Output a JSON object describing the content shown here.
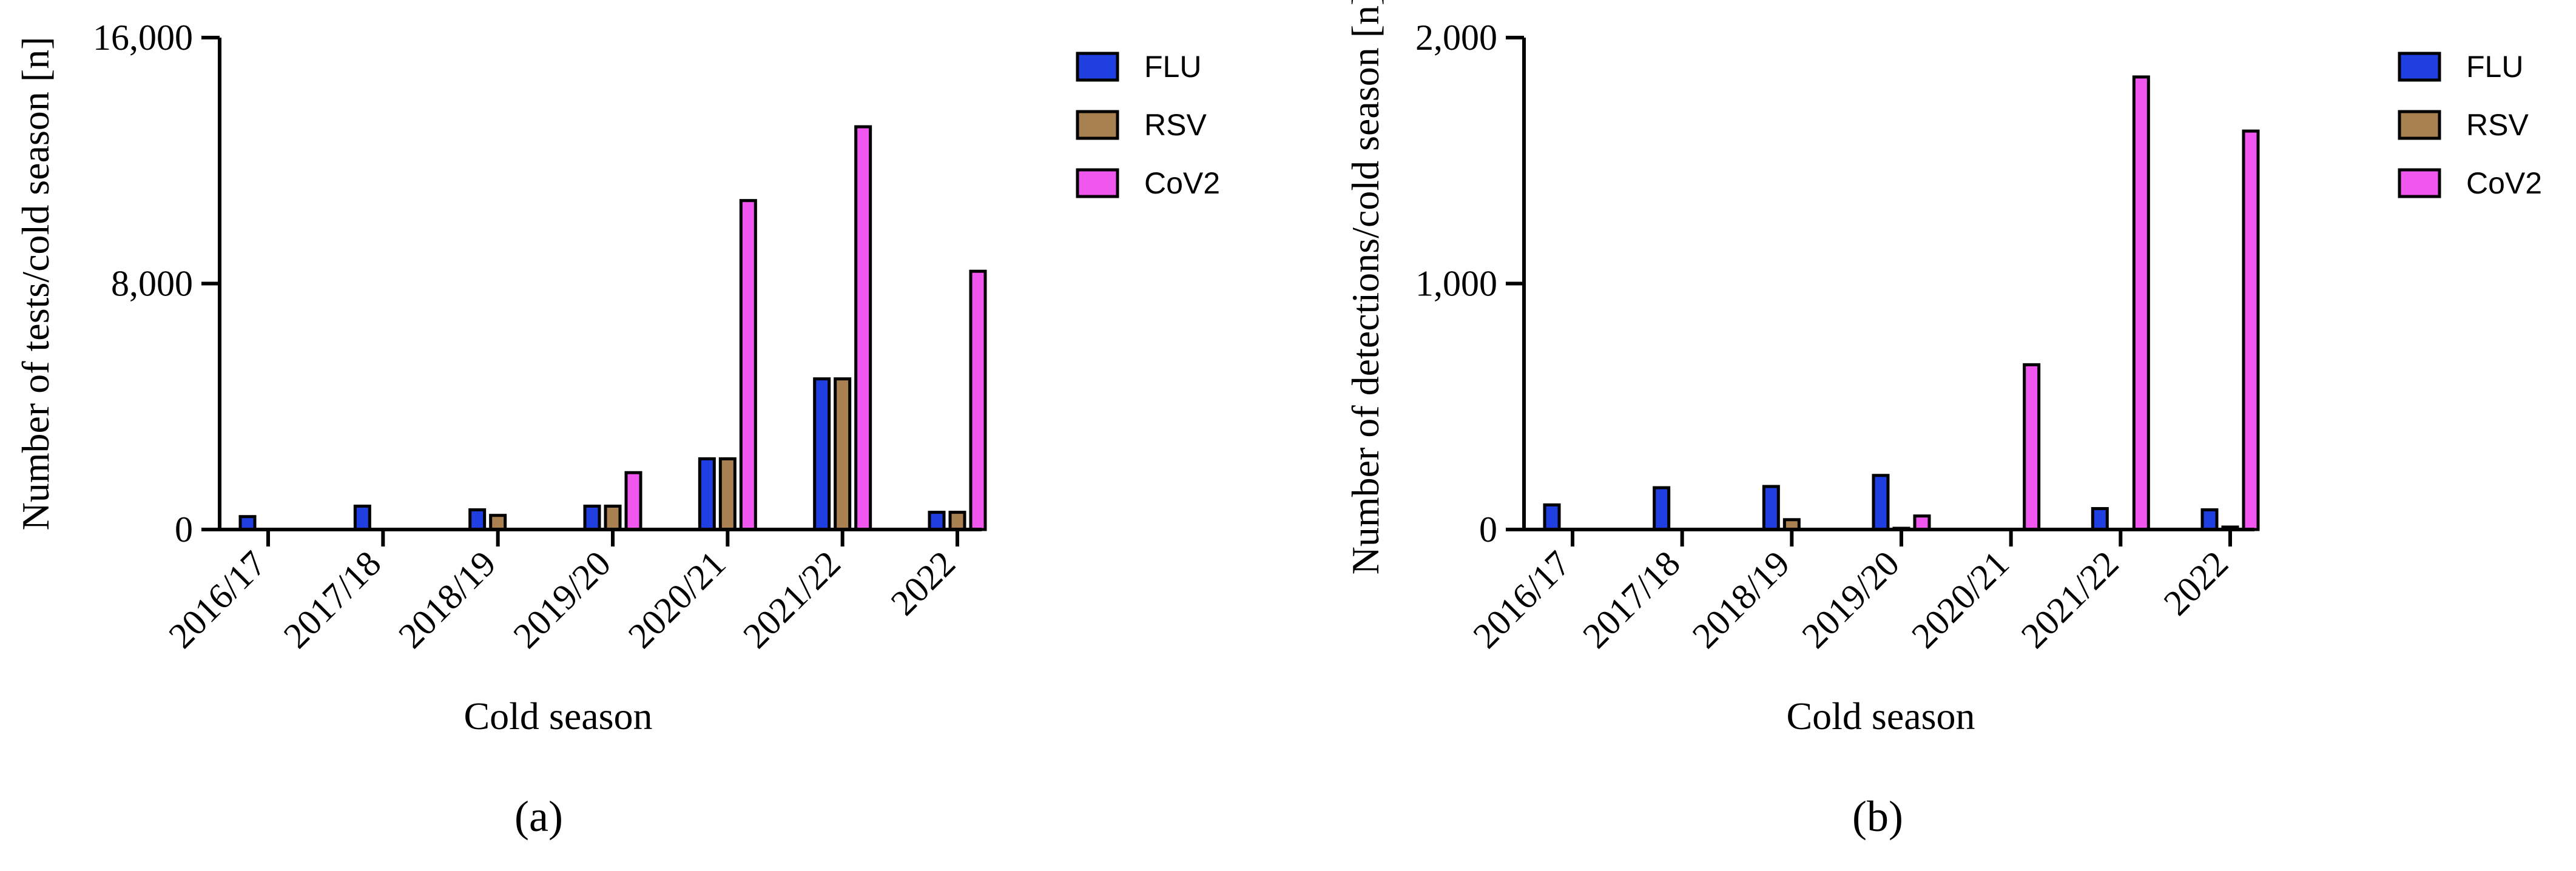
{
  "chart_data": [
    {
      "type": "bar",
      "panel_label": "(a)",
      "xlabel": "Cold season",
      "ylabel": "Number of tests/cold season [n]",
      "categories": [
        "2016/17",
        "2017/18",
        "2018/19",
        "2019/20",
        "2020/21",
        "2021/22",
        "2022"
      ],
      "ylim": [
        0,
        16000
      ],
      "yticks": [
        0,
        8000,
        16000
      ],
      "ytick_labels": [
        "0",
        "8,000",
        "16,000"
      ],
      "series": [
        {
          "name": "FLU",
          "color": "#1f3fe0",
          "values": [
            420,
            760,
            640,
            760,
            2300,
            4900,
            560
          ]
        },
        {
          "name": "RSV",
          "color": "#a9804f",
          "values": [
            0,
            0,
            460,
            760,
            2300,
            4900,
            560
          ]
        },
        {
          "name": "CoV2",
          "color": "#f057ef",
          "values": [
            0,
            0,
            0,
            1850,
            10700,
            13100,
            8400
          ]
        }
      ],
      "legend": {
        "position": "top-right",
        "labels": [
          "FLU",
          "RSV",
          "CoV2"
        ]
      }
    },
    {
      "type": "bar",
      "panel_label": "(b)",
      "xlabel": "Cold season",
      "ylabel": "Number of detections/cold season [n]",
      "categories": [
        "2016/17",
        "2017/18",
        "2018/19",
        "2019/20",
        "2020/21",
        "2021/22",
        "2022"
      ],
      "ylim": [
        0,
        2000
      ],
      "yticks": [
        0,
        1000,
        2000
      ],
      "ytick_labels": [
        "0",
        "1,000",
        "2,000"
      ],
      "series": [
        {
          "name": "FLU",
          "color": "#1f3fe0",
          "values": [
            100,
            170,
            175,
            220,
            0,
            85,
            80
          ]
        },
        {
          "name": "RSV",
          "color": "#a9804f",
          "values": [
            0,
            0,
            40,
            5,
            0,
            0,
            10
          ]
        },
        {
          "name": "CoV2",
          "color": "#f057ef",
          "values": [
            0,
            0,
            0,
            55,
            670,
            1840,
            1620
          ]
        }
      ],
      "legend": {
        "position": "top-right",
        "labels": [
          "FLU",
          "RSV",
          "CoV2"
        ]
      }
    }
  ]
}
